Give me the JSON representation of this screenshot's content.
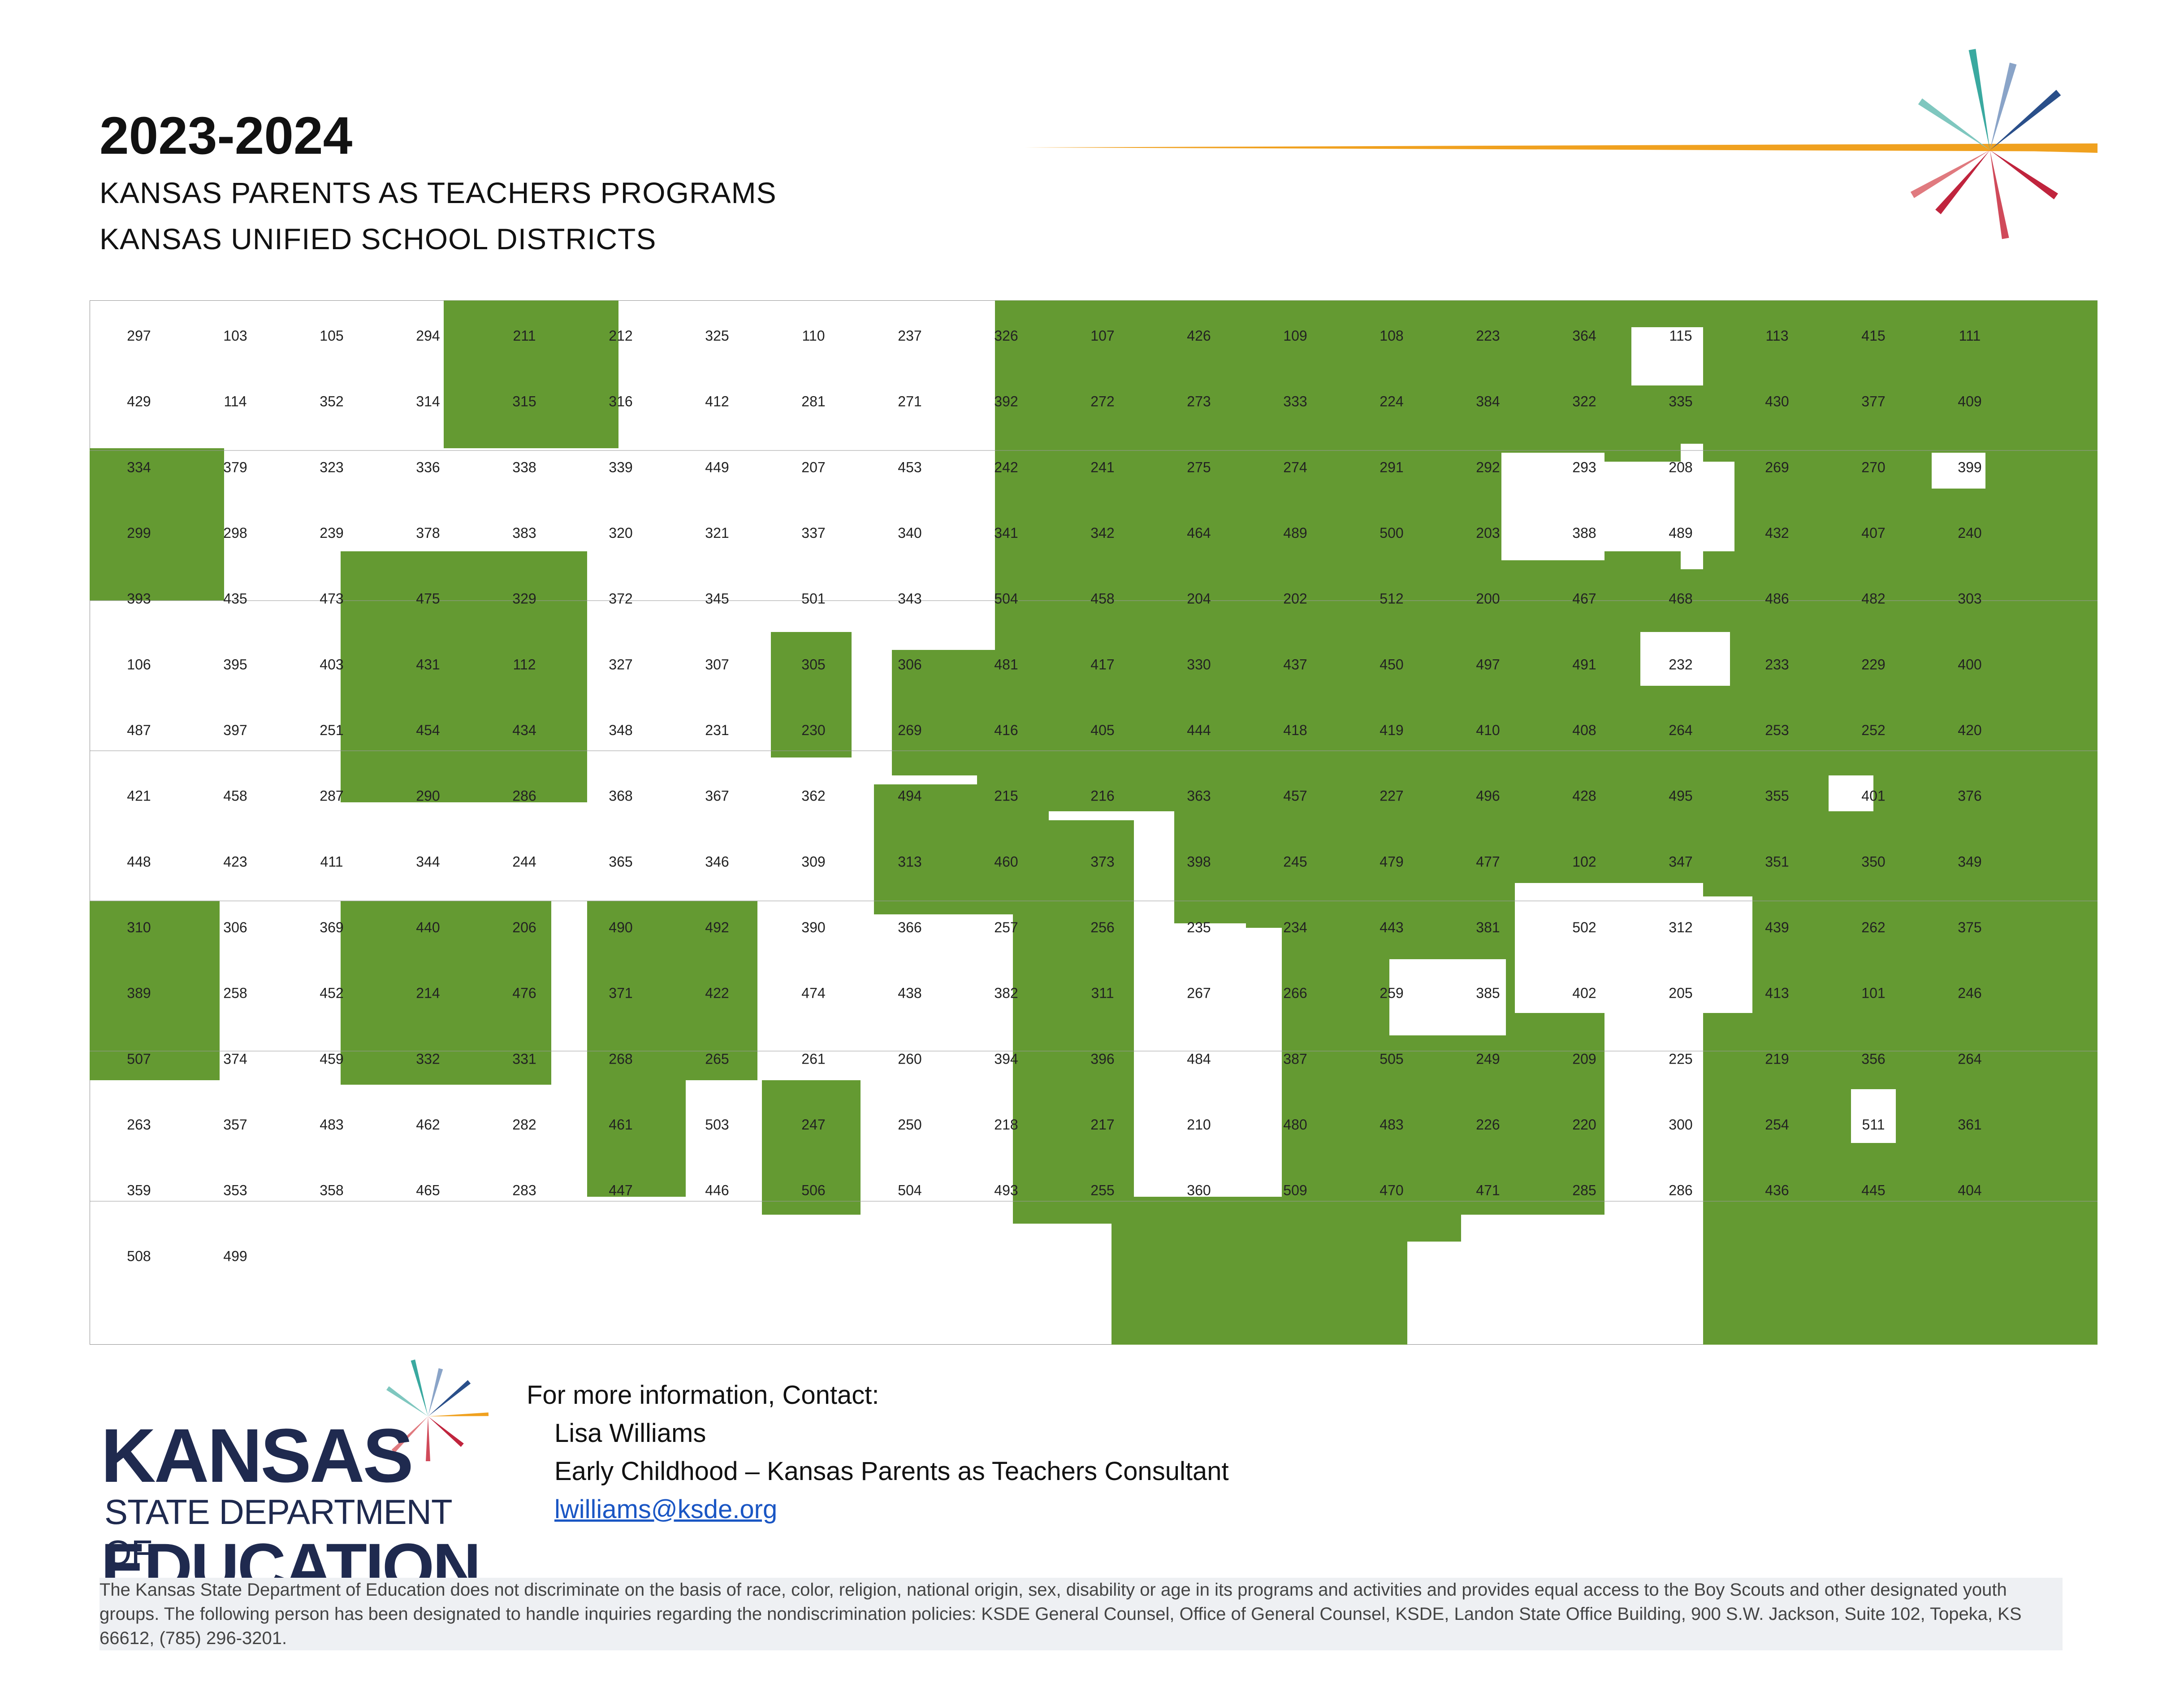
{
  "header": {
    "year": "2023-2024",
    "subtitle_line1": "KANSAS PARENTS AS TEACHERS PROGRAMS",
    "subtitle_line2": "KANSAS UNIFIED SCHOOL DISTRICTS"
  },
  "colors": {
    "program_district": "#649a32",
    "non_program_district": "#ffffff",
    "accent_orange": "#f0a11f",
    "brand_navy": "#1f2a4f"
  },
  "map": {
    "district_labels": [
      "297",
      "103",
      "105",
      "294",
      "211",
      "212",
      "325",
      "110",
      "237",
      "326",
      "107",
      "426",
      "109",
      "108",
      "223",
      "364",
      "115",
      "113",
      "415",
      "111",
      "429",
      "114",
      "352",
      "314",
      "315",
      "316",
      "412",
      "281",
      "271",
      "392",
      "272",
      "273",
      "333",
      "224",
      "384",
      "322",
      "335",
      "430",
      "377",
      "409",
      "334",
      "379",
      "323",
      "336",
      "338",
      "339",
      "449",
      "207",
      "453",
      "242",
      "241",
      "275",
      "274",
      "291",
      "292",
      "293",
      "208",
      "269",
      "270",
      "399",
      "299",
      "298",
      "239",
      "378",
      "383",
      "320",
      "321",
      "337",
      "340",
      "341",
      "342",
      "464",
      "489",
      "500",
      "203",
      "388",
      "489",
      "432",
      "407",
      "240",
      "393",
      "435",
      "473",
      "475",
      "329",
      "372",
      "345",
      "501",
      "343",
      "504",
      "458",
      "204",
      "202",
      "512",
      "200",
      "467",
      "468",
      "486",
      "482",
      "303",
      "106",
      "395",
      "403",
      "431",
      "112",
      "327",
      "307",
      "305",
      "306",
      "481",
      "417",
      "330",
      "437",
      "450",
      "497",
      "491",
      "232",
      "233",
      "229",
      "400",
      "487",
      "397",
      "251",
      "454",
      "434",
      "348",
      "231",
      "230",
      "269",
      "416",
      "405",
      "444",
      "418",
      "419",
      "410",
      "408",
      "264",
      "253",
      "252",
      "420",
      "421",
      "458",
      "287",
      "290",
      "286",
      "368",
      "367",
      "362",
      "494",
      "215",
      "216",
      "363",
      "457",
      "227",
      "496",
      "428",
      "495",
      "355",
      "401",
      "376",
      "448",
      "423",
      "411",
      "344",
      "244",
      "365",
      "346",
      "309",
      "313",
      "460",
      "373",
      "398",
      "245",
      "479",
      "477",
      "102",
      "347",
      "351",
      "350",
      "349",
      "310",
      "306",
      "369",
      "440",
      "206",
      "490",
      "492",
      "390",
      "366",
      "257",
      "256",
      "235",
      "234",
      "443",
      "381",
      "502",
      "312",
      "439",
      "262",
      "375",
      "389",
      "258",
      "452",
      "214",
      "476",
      "371",
      "422",
      "474",
      "438",
      "382",
      "311",
      "267",
      "266",
      "259",
      "385",
      "402",
      "205",
      "413",
      "101",
      "246",
      "507",
      "374",
      "459",
      "332",
      "331",
      "268",
      "265",
      "261",
      "260",
      "394",
      "396",
      "484",
      "387",
      "505",
      "249",
      "209",
      "225",
      "219",
      "356",
      "264",
      "263",
      "357",
      "483",
      "462",
      "282",
      "461",
      "503",
      "247",
      "250",
      "218",
      "217",
      "210",
      "480",
      "483",
      "226",
      "220",
      "300",
      "254",
      "511",
      "361",
      "359",
      "353",
      "358",
      "465",
      "283",
      "447",
      "446",
      "506",
      "504",
      "493",
      "255",
      "360",
      "509",
      "470",
      "471",
      "285",
      "286",
      "436",
      "445",
      "404",
      "508",
      "499"
    ]
  },
  "logo": {
    "name_top": "KANSAS",
    "name_mid": "STATE DEPARTMENT OF",
    "name_bottom": "EDUCATION"
  },
  "contact": {
    "heading": "For more information, Contact:",
    "name": "Lisa Williams",
    "title": "Early Childhood – Kansas Parents as Teachers Consultant",
    "email": "lwilliams@ksde.org"
  },
  "disclaimer": "The Kansas State Department of Education does not discriminate on the basis of race, color, religion, national origin, sex, disability or age in its programs and activities and provides equal access to the Boy Scouts and other designated youth groups. The following person has been designated to handle inquiries regarding the nondiscrimination policies: KSDE General Counsel, Office of General Counsel, KSDE, Landon State Office Building, 900 S.W. Jackson, Suite 102, Topeka, KS 66612, (785) 296-3201."
}
